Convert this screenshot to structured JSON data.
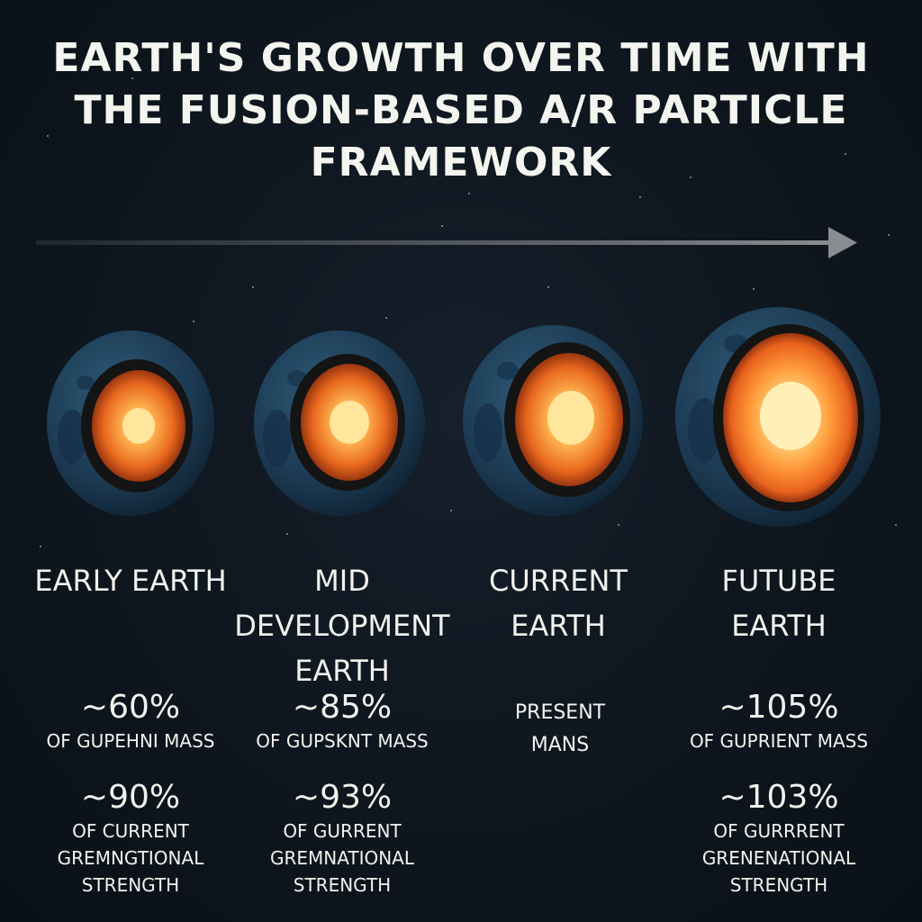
{
  "title": "EARTH'S GROWTH OVER TIME WITH THE FUSION-BASED A/R PARTICLE FRAMEWORK",
  "stages": [
    {
      "label": "EARLY EARTH",
      "mass_value": "~60%",
      "mass_desc": "OF GUPEHNI MASS",
      "gravity_value": "~90%",
      "gravity_desc": "OF CURRENT GREMNGTIONAL STRENGTH"
    },
    {
      "label": "MID DEVELOPMENT EARTH",
      "mass_value": "~85%",
      "mass_desc": "OF GUPSKNT MASS",
      "gravity_value": "~93%",
      "gravity_desc": "OF GURRENT GREMNATIONAL STRENGTH"
    },
    {
      "label": "CURRENT EARTH",
      "mass_desc": "PRESENT MANS"
    },
    {
      "label": "FUTUBE EARTH",
      "mass_value": "~105%",
      "mass_desc": "OF GUPRIENT MASS",
      "gravity_value": "~103%",
      "gravity_desc": "OF GURRRENT GRENENATIONAL STRENGTH"
    }
  ],
  "colors": {
    "background": "#0d141c",
    "shell": "#1d3d55",
    "mantle": "#c4531a",
    "core": "#ffe28a",
    "text": "#f2f2ee",
    "arrow": "#8a8d90"
  },
  "icons": {
    "arrow": "timeline-arrow-icon",
    "earth": "earth-cross-section-icon"
  }
}
